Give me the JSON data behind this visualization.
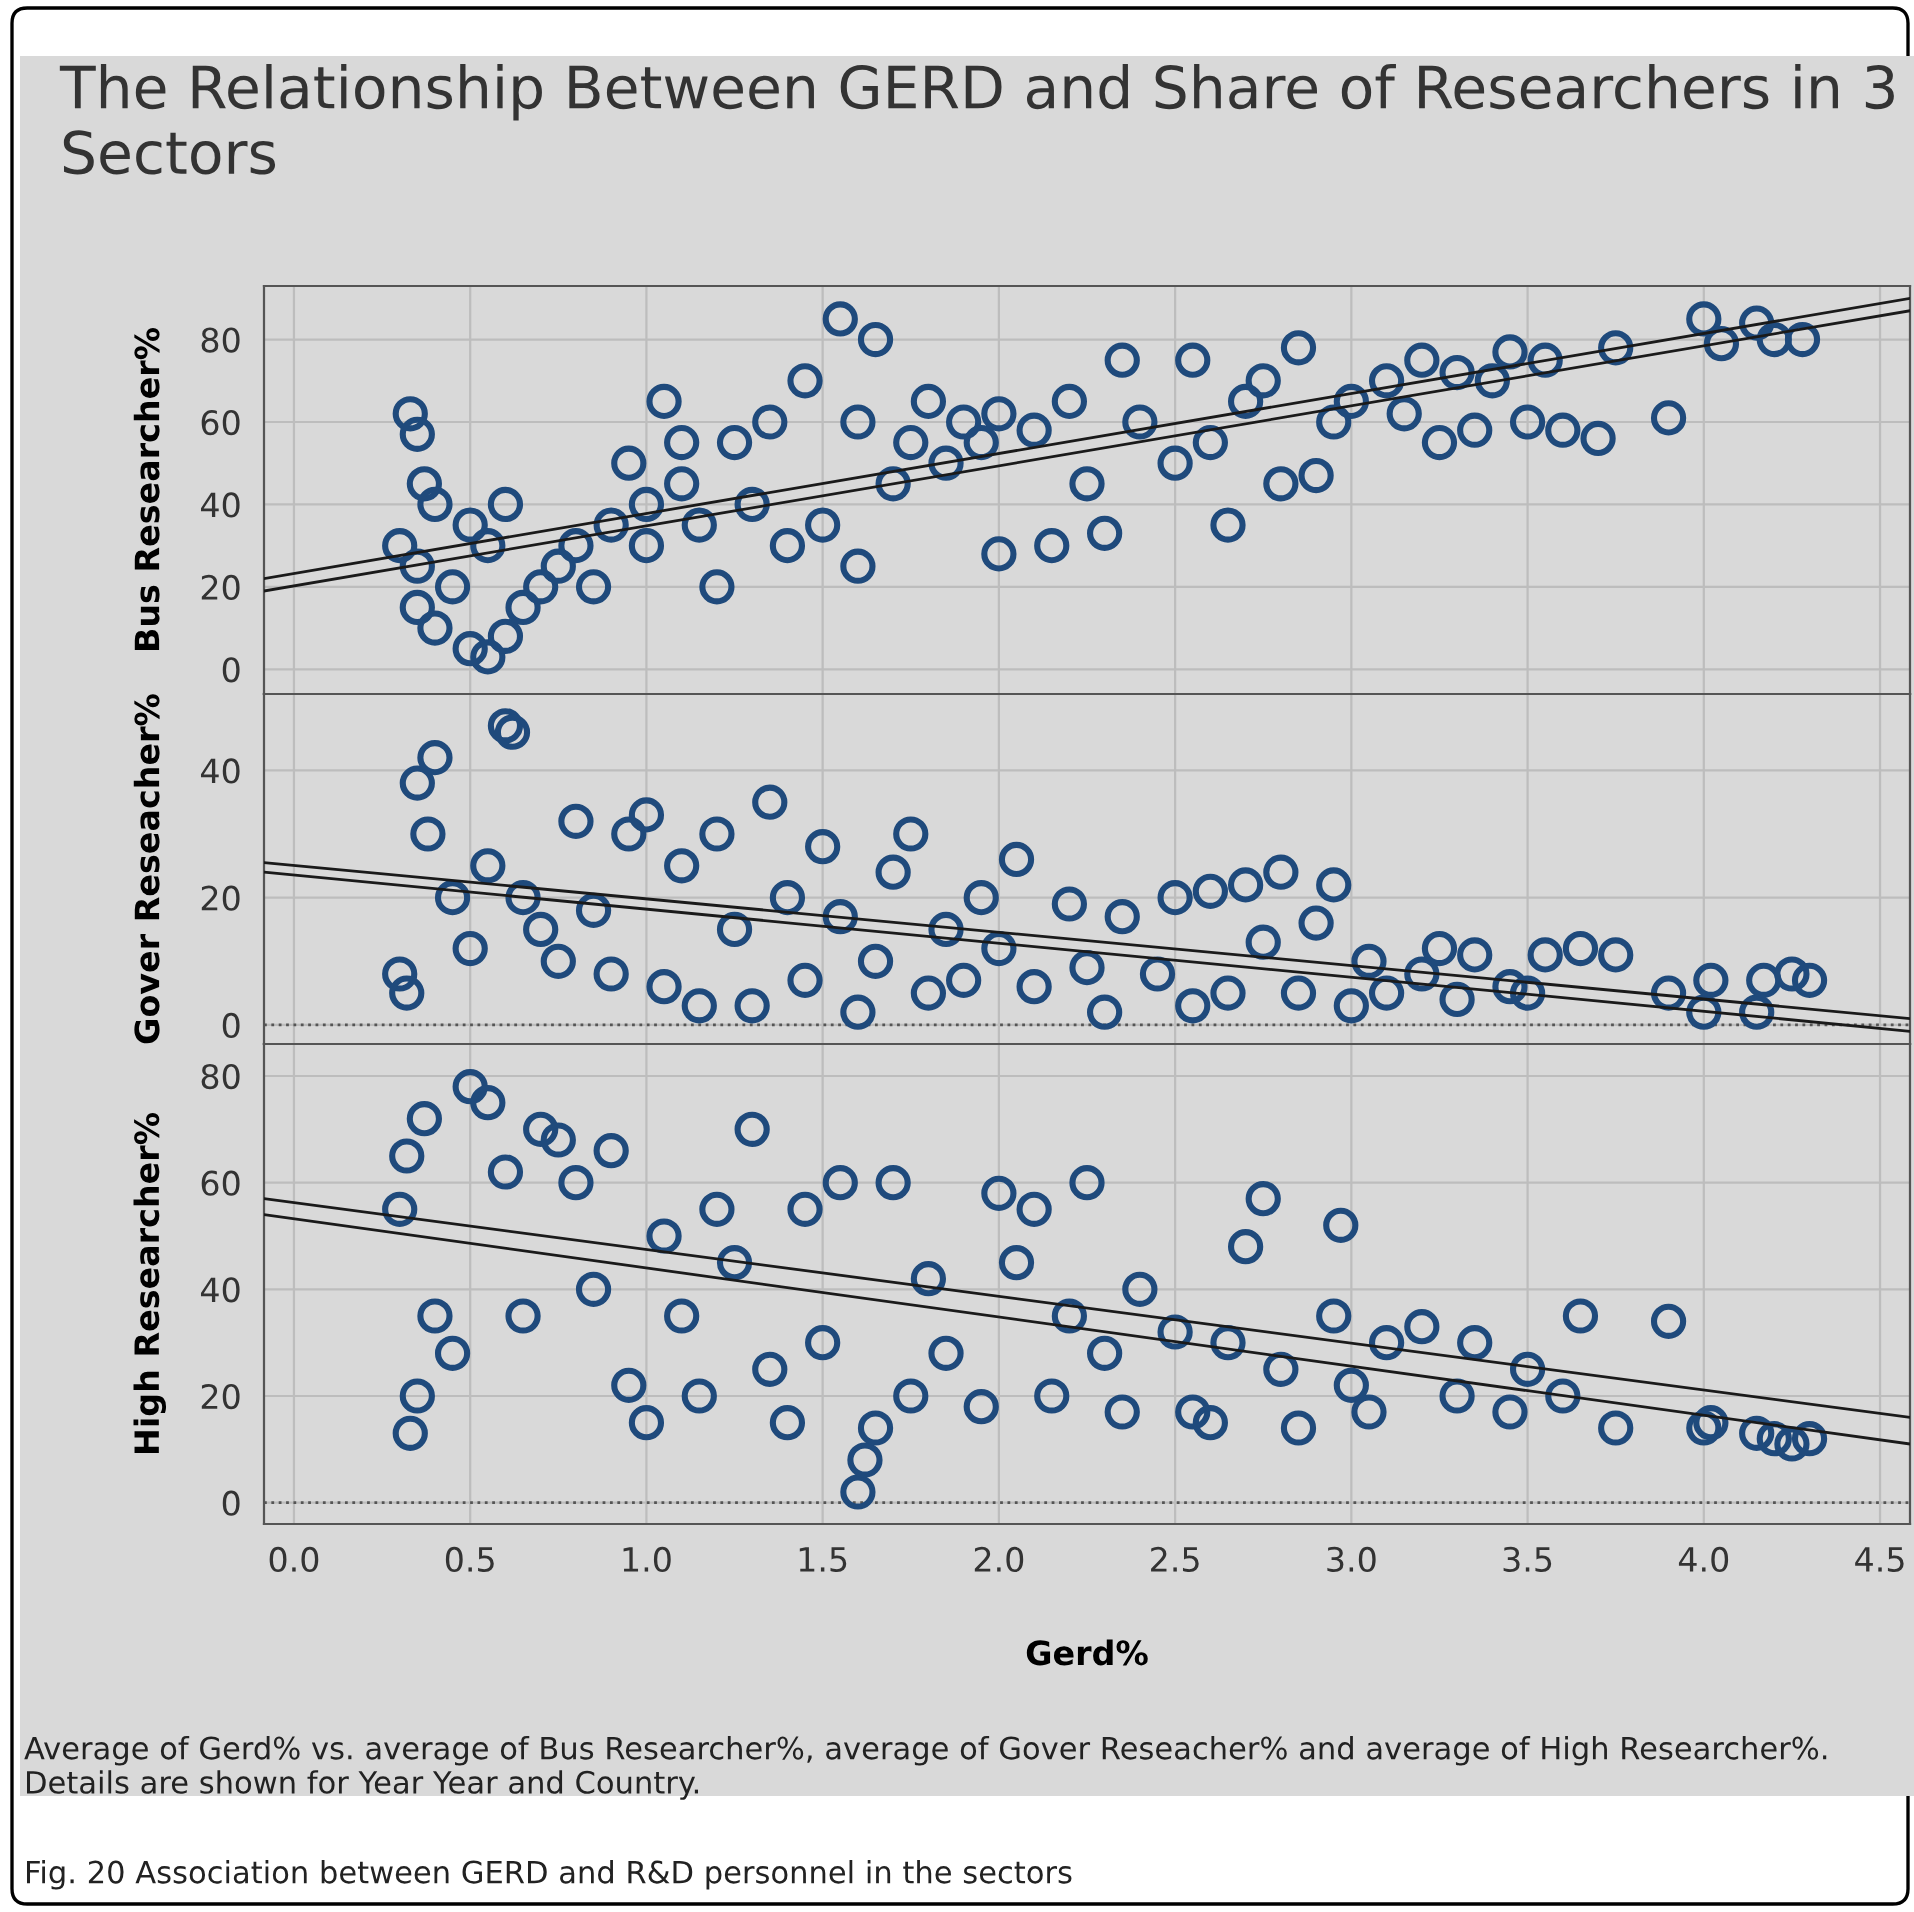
{
  "chart_data": [
    {
      "type": "scatter",
      "title": "The Relationship Between GERD and Share of Researchers in 3 Sectors",
      "ylabel": "Bus Researcher%",
      "xlim": [
        -0.085,
        4.585
      ],
      "xticks": [
        0,
        0.5,
        1,
        1.5,
        2,
        2.5,
        3,
        3.5,
        4,
        4.5
      ],
      "ylim": [
        -6,
        93
      ],
      "yticks": [
        0,
        20,
        40,
        60,
        80
      ],
      "grid": true,
      "tick_labels": "y",
      "series": [
        {
          "color": "#1f4a7c",
          "marker": "circle",
          "x": [
            0.3,
            0.33,
            0.35,
            0.37,
            0.4,
            0.35,
            0.35,
            0.4,
            0.45,
            0.5,
            0.55,
            0.6,
            0.55,
            0.6,
            0.5,
            0.65,
            0.7,
            0.75,
            0.8,
            0.85,
            0.9,
            0.95,
            1.0,
            1.05,
            1.1,
            1.0,
            1.1,
            1.15,
            1.2,
            1.25,
            1.3,
            1.35,
            1.4,
            1.45,
            1.5,
            1.55,
            1.6,
            1.65,
            1.6,
            1.7,
            1.75,
            1.8,
            1.85,
            1.9,
            1.95,
            2.0,
            2.0,
            2.1,
            2.15,
            2.2,
            2.25,
            2.3,
            2.35,
            2.4,
            2.5,
            2.55,
            2.6,
            2.65,
            2.7,
            2.75,
            2.8,
            2.85,
            2.9,
            2.95,
            3.0,
            3.1,
            3.15,
            3.2,
            3.25,
            3.3,
            3.35,
            3.4,
            3.45,
            3.5,
            3.55,
            3.6,
            3.7,
            3.75,
            3.9,
            4.0,
            4.05,
            4.15,
            4.2,
            4.28
          ],
          "values": [
            30,
            62,
            57,
            45,
            40,
            25,
            15,
            10,
            20,
            5,
            3,
            8,
            30,
            40,
            35,
            15,
            20,
            25,
            30,
            20,
            35,
            50,
            40,
            65,
            55,
            30,
            45,
            35,
            20,
            55,
            40,
            60,
            30,
            70,
            35,
            85,
            60,
            80,
            25,
            45,
            55,
            65,
            50,
            60,
            55,
            62,
            28,
            58,
            30,
            65,
            45,
            33,
            75,
            60,
            50,
            75,
            55,
            35,
            65,
            70,
            45,
            78,
            47,
            60,
            65,
            70,
            62,
            75,
            55,
            72,
            58,
            70,
            77,
            60,
            75,
            58,
            56,
            78,
            61,
            85,
            79,
            84,
            80,
            80
          ]
        },
        {
          "type": "line",
          "color": "#1a1a1a",
          "x": [
            -0.085,
            4.585
          ],
          "values": [
            22,
            90
          ]
        },
        {
          "type": "line",
          "color": "#1a1a1a",
          "x": [
            -0.085,
            4.585
          ],
          "values": [
            19,
            87
          ]
        }
      ]
    },
    {
      "type": "scatter",
      "ylabel": "Gover Reseacher%",
      "xlim": [
        -0.085,
        4.585
      ],
      "xticks": [
        0,
        0.5,
        1,
        1.5,
        2,
        2.5,
        3,
        3.5,
        4,
        4.5
      ],
      "ylim": [
        -3,
        52
      ],
      "yticks": [
        0,
        20,
        40
      ],
      "grid": true,
      "tick_labels": "y",
      "ref_lines": [
        {
          "axis": "y",
          "value": 0,
          "color": "#555555",
          "line_style": "dotted"
        }
      ],
      "series": [
        {
          "color": "#1f4a7c",
          "marker": "circle",
          "x": [
            0.3,
            0.32,
            0.35,
            0.38,
            0.4,
            0.45,
            0.5,
            0.55,
            0.6,
            0.62,
            0.65,
            0.7,
            0.75,
            0.8,
            0.85,
            0.9,
            0.95,
            1.0,
            1.05,
            1.1,
            1.15,
            1.2,
            1.25,
            1.3,
            1.35,
            1.4,
            1.45,
            1.5,
            1.55,
            1.6,
            1.65,
            1.7,
            1.75,
            1.8,
            1.85,
            1.9,
            1.95,
            2.0,
            2.05,
            2.1,
            2.2,
            2.25,
            2.3,
            2.35,
            2.45,
            2.5,
            2.55,
            2.6,
            2.65,
            2.7,
            2.75,
            2.8,
            2.85,
            2.9,
            2.95,
            3.0,
            3.05,
            3.1,
            3.2,
            3.25,
            3.3,
            3.35,
            3.45,
            3.5,
            3.55,
            3.65,
            3.75,
            3.9,
            4.0,
            4.02,
            4.15,
            4.17,
            4.25,
            4.3
          ],
          "values": [
            8,
            5,
            38,
            30,
            42,
            20,
            12,
            25,
            47,
            46,
            20,
            15,
            10,
            32,
            18,
            8,
            30,
            33,
            6,
            25,
            3,
            30,
            15,
            3,
            35,
            20,
            7,
            28,
            17,
            2,
            10,
            24,
            30,
            5,
            15,
            7,
            20,
            12,
            26,
            6,
            19,
            9,
            2,
            17,
            8,
            20,
            3,
            21,
            5,
            22,
            13,
            24,
            5,
            16,
            22,
            3,
            10,
            5,
            8,
            12,
            4,
            11,
            6,
            5,
            11,
            12,
            11,
            5,
            2,
            7,
            2,
            7,
            8,
            7
          ]
        },
        {
          "type": "line",
          "color": "#1a1a1a",
          "x": [
            -0.085,
            4.585
          ],
          "values": [
            25.5,
            1
          ]
        },
        {
          "type": "line",
          "color": "#1a1a1a",
          "x": [
            -0.085,
            4.585
          ],
          "values": [
            24,
            -1
          ]
        }
      ]
    },
    {
      "type": "scatter",
      "ylabel": "High Researcher%",
      "xlabel": "Gerd%",
      "xlim": [
        -0.085,
        4.585
      ],
      "xticks": [
        {
          "value": 0,
          "label": "0.0"
        },
        0.5,
        {
          "value": 1,
          "label": "1.0"
        },
        1.5,
        {
          "value": 2,
          "label": "2.0"
        },
        2.5,
        {
          "value": 3,
          "label": "3.0"
        },
        3.5,
        {
          "value": 4,
          "label": "4.0"
        },
        4.5
      ],
      "ylim": [
        -4,
        86
      ],
      "yticks": [
        0,
        20,
        40,
        60,
        80
      ],
      "grid": true,
      "ref_lines": [
        {
          "axis": "y",
          "value": 0,
          "color": "#555555",
          "line_style": "dotted"
        }
      ],
      "annotations": [
        "Average of Gerd% vs. average of Bus Researcher%, average of Gover Reseacher% and average of High Researcher%.  Details are shown for Year Year and Country.",
        "Fig. 20 Association between GERD and R&D personnel in the sectors"
      ],
      "series": [
        {
          "color": "#1f4a7c",
          "marker": "circle",
          "x": [
            0.3,
            0.32,
            0.33,
            0.35,
            0.37,
            0.4,
            0.45,
            0.5,
            0.55,
            0.6,
            0.65,
            0.7,
            0.75,
            0.8,
            0.85,
            0.9,
            0.95,
            1.0,
            1.05,
            1.1,
            1.15,
            1.2,
            1.25,
            1.3,
            1.35,
            1.4,
            1.45,
            1.5,
            1.55,
            1.6,
            1.62,
            1.65,
            1.7,
            1.75,
            1.8,
            1.85,
            1.95,
            2.0,
            2.05,
            2.1,
            2.15,
            2.2,
            2.25,
            2.3,
            2.35,
            2.4,
            2.5,
            2.55,
            2.6,
            2.65,
            2.7,
            2.75,
            2.8,
            2.85,
            2.95,
            2.97,
            3.0,
            3.05,
            3.1,
            3.2,
            3.3,
            3.35,
            3.45,
            3.5,
            3.6,
            3.65,
            3.75,
            3.9,
            4.0,
            4.02,
            4.15,
            4.2,
            4.25,
            4.3
          ],
          "values": [
            55,
            65,
            13,
            20,
            72,
            35,
            28,
            78,
            75,
            62,
            35,
            70,
            68,
            60,
            40,
            66,
            22,
            15,
            50,
            35,
            20,
            55,
            45,
            70,
            25,
            15,
            55,
            30,
            60,
            2,
            8,
            14,
            60,
            20,
            42,
            28,
            18,
            58,
            45,
            55,
            20,
            35,
            60,
            28,
            17,
            40,
            32,
            17,
            15,
            30,
            48,
            57,
            25,
            14,
            35,
            52,
            22,
            17,
            30,
            33,
            20,
            30,
            17,
            25,
            20,
            35,
            14,
            34,
            14,
            15,
            13,
            12,
            11,
            12
          ]
        },
        {
          "type": "line",
          "color": "#1a1a1a",
          "x": [
            -0.085,
            4.585
          ],
          "values": [
            57,
            16
          ]
        },
        {
          "type": "line",
          "color": "#1a1a1a",
          "x": [
            -0.085,
            4.585
          ],
          "values": [
            54,
            11
          ]
        }
      ]
    }
  ]
}
